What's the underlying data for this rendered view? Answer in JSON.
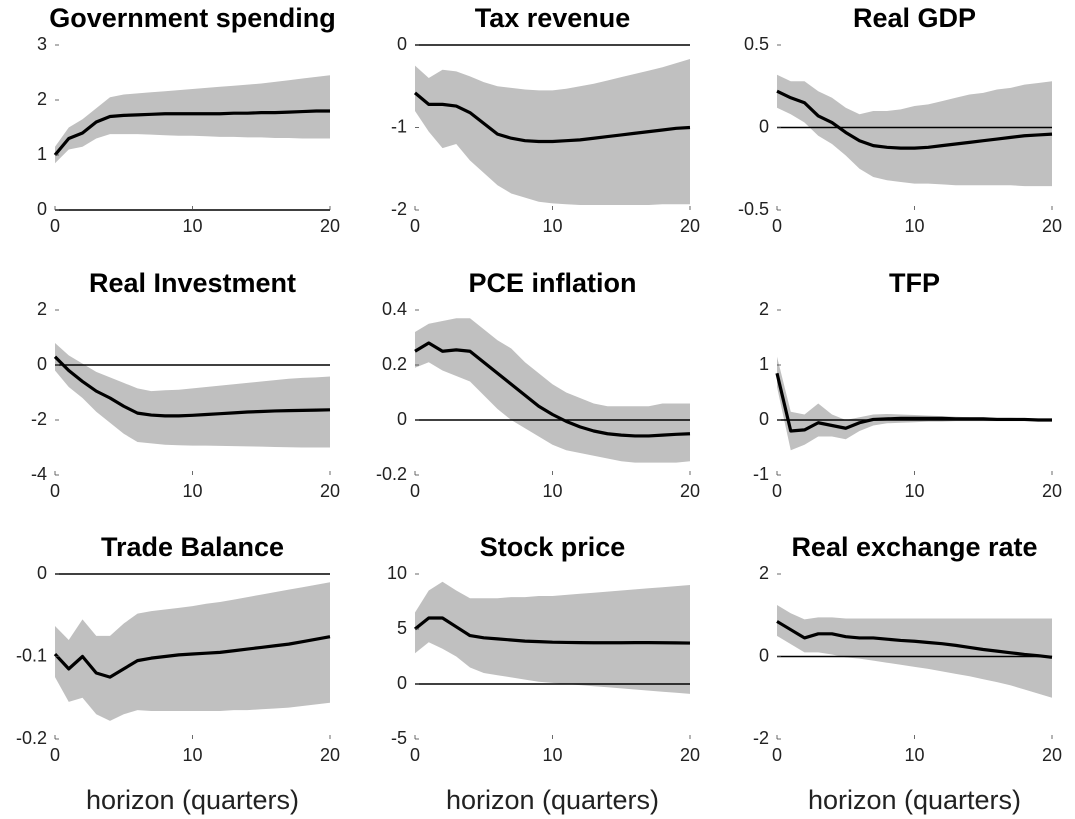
{
  "chart_data": [
    {
      "type": "line",
      "title": "Government spending",
      "x": [
        0,
        1,
        2,
        3,
        4,
        5,
        6,
        7,
        8,
        9,
        10,
        11,
        12,
        13,
        14,
        15,
        16,
        17,
        18,
        19,
        20
      ],
      "values": [
        1.0,
        1.3,
        1.4,
        1.6,
        1.7,
        1.72,
        1.73,
        1.74,
        1.75,
        1.75,
        1.75,
        1.75,
        1.75,
        1.76,
        1.76,
        1.77,
        1.77,
        1.78,
        1.79,
        1.8,
        1.8
      ],
      "lower": [
        0.85,
        1.1,
        1.15,
        1.3,
        1.38,
        1.38,
        1.38,
        1.37,
        1.36,
        1.35,
        1.35,
        1.34,
        1.33,
        1.33,
        1.32,
        1.32,
        1.31,
        1.31,
        1.3,
        1.3,
        1.3
      ],
      "upper": [
        1.15,
        1.5,
        1.65,
        1.85,
        2.05,
        2.1,
        2.12,
        2.14,
        2.16,
        2.18,
        2.2,
        2.22,
        2.24,
        2.26,
        2.28,
        2.3,
        2.33,
        2.36,
        2.39,
        2.42,
        2.45
      ],
      "color": "#000000",
      "band_color": "#c0c0c0",
      "xlim": [
        0,
        20
      ],
      "xticks": [
        0,
        10,
        20
      ],
      "ylim": [
        0,
        3
      ],
      "yticks": [
        0,
        1,
        2,
        3
      ]
    },
    {
      "type": "line",
      "title": "Tax revenue",
      "x": [
        0,
        1,
        2,
        3,
        4,
        5,
        6,
        7,
        8,
        9,
        10,
        11,
        12,
        13,
        14,
        15,
        16,
        17,
        18,
        19,
        20
      ],
      "values": [
        -0.58,
        -0.72,
        -0.72,
        -0.74,
        -0.82,
        -0.95,
        -1.08,
        -1.13,
        -1.16,
        -1.17,
        -1.17,
        -1.16,
        -1.15,
        -1.13,
        -1.11,
        -1.09,
        -1.07,
        -1.05,
        -1.03,
        -1.01,
        -1.0
      ],
      "lower": [
        -0.8,
        -1.05,
        -1.25,
        -1.2,
        -1.4,
        -1.55,
        -1.7,
        -1.8,
        -1.85,
        -1.9,
        -1.92,
        -1.93,
        -1.94,
        -1.94,
        -1.94,
        -1.94,
        -1.94,
        -1.94,
        -1.93,
        -1.93,
        -1.93
      ],
      "upper": [
        -0.25,
        -0.4,
        -0.3,
        -0.32,
        -0.38,
        -0.45,
        -0.5,
        -0.52,
        -0.54,
        -0.55,
        -0.55,
        -0.53,
        -0.5,
        -0.47,
        -0.43,
        -0.39,
        -0.35,
        -0.31,
        -0.27,
        -0.22,
        -0.17
      ],
      "color": "#000000",
      "band_color": "#c0c0c0",
      "xlim": [
        0,
        20
      ],
      "xticks": [
        0,
        10,
        20
      ],
      "ylim": [
        -2,
        0
      ],
      "yticks": [
        -2,
        -1,
        0
      ]
    },
    {
      "type": "line",
      "title": "Real GDP",
      "x": [
        0,
        1,
        2,
        3,
        4,
        5,
        6,
        7,
        8,
        9,
        10,
        11,
        12,
        13,
        14,
        15,
        16,
        17,
        18,
        19,
        20
      ],
      "values": [
        0.22,
        0.18,
        0.15,
        0.07,
        0.03,
        -0.03,
        -0.08,
        -0.11,
        -0.12,
        -0.125,
        -0.125,
        -0.12,
        -0.11,
        -0.1,
        -0.09,
        -0.08,
        -0.07,
        -0.06,
        -0.05,
        -0.045,
        -0.04
      ],
      "lower": [
        0.12,
        0.08,
        0.03,
        -0.05,
        -0.1,
        -0.17,
        -0.25,
        -0.3,
        -0.32,
        -0.33,
        -0.34,
        -0.34,
        -0.345,
        -0.35,
        -0.35,
        -0.35,
        -0.35,
        -0.35,
        -0.355,
        -0.355,
        -0.355
      ],
      "upper": [
        0.32,
        0.28,
        0.28,
        0.22,
        0.18,
        0.12,
        0.08,
        0.1,
        0.1,
        0.11,
        0.13,
        0.14,
        0.16,
        0.18,
        0.2,
        0.21,
        0.23,
        0.24,
        0.26,
        0.27,
        0.28
      ],
      "color": "#000000",
      "band_color": "#c0c0c0",
      "xlim": [
        0,
        20
      ],
      "xticks": [
        0,
        10,
        20
      ],
      "ylim": [
        -0.5,
        0.5
      ],
      "yticks": [
        -0.5,
        0,
        0.5
      ]
    },
    {
      "type": "line",
      "title": "Real Investment",
      "x": [
        0,
        1,
        2,
        3,
        4,
        5,
        6,
        7,
        8,
        9,
        10,
        11,
        12,
        13,
        14,
        15,
        16,
        17,
        18,
        19,
        20
      ],
      "values": [
        0.3,
        -0.2,
        -0.6,
        -0.95,
        -1.2,
        -1.5,
        -1.75,
        -1.82,
        -1.85,
        -1.85,
        -1.83,
        -1.8,
        -1.77,
        -1.74,
        -1.71,
        -1.69,
        -1.67,
        -1.66,
        -1.65,
        -1.64,
        -1.63
      ],
      "lower": [
        -0.2,
        -0.8,
        -1.2,
        -1.7,
        -2.1,
        -2.5,
        -2.8,
        -2.85,
        -2.9,
        -2.92,
        -2.93,
        -2.93,
        -2.94,
        -2.95,
        -2.96,
        -2.97,
        -2.98,
        -2.99,
        -3.0,
        -3.0,
        -3.0
      ],
      "upper": [
        0.8,
        0.35,
        0.05,
        -0.25,
        -0.45,
        -0.65,
        -0.85,
        -0.95,
        -0.92,
        -0.9,
        -0.85,
        -0.8,
        -0.75,
        -0.7,
        -0.65,
        -0.6,
        -0.55,
        -0.5,
        -0.47,
        -0.45,
        -0.42
      ],
      "color": "#000000",
      "band_color": "#c0c0c0",
      "xlim": [
        0,
        20
      ],
      "xticks": [
        0,
        10,
        20
      ],
      "ylim": [
        -4,
        2
      ],
      "yticks": [
        -4,
        -2,
        0,
        2
      ]
    },
    {
      "type": "line",
      "title": "PCE inflation",
      "x": [
        0,
        1,
        2,
        3,
        4,
        5,
        6,
        7,
        8,
        9,
        10,
        11,
        12,
        13,
        14,
        15,
        16,
        17,
        18,
        19,
        20
      ],
      "values": [
        0.25,
        0.28,
        0.25,
        0.255,
        0.25,
        0.21,
        0.17,
        0.13,
        0.09,
        0.05,
        0.02,
        -0.005,
        -0.025,
        -0.04,
        -0.05,
        -0.055,
        -0.058,
        -0.058,
        -0.055,
        -0.052,
        -0.05
      ],
      "lower": [
        0.19,
        0.21,
        0.18,
        0.16,
        0.14,
        0.09,
        0.04,
        0.0,
        -0.03,
        -0.06,
        -0.09,
        -0.11,
        -0.12,
        -0.13,
        -0.14,
        -0.15,
        -0.155,
        -0.155,
        -0.155,
        -0.155,
        -0.15
      ],
      "upper": [
        0.32,
        0.35,
        0.36,
        0.37,
        0.37,
        0.33,
        0.29,
        0.26,
        0.21,
        0.17,
        0.13,
        0.1,
        0.08,
        0.06,
        0.05,
        0.05,
        0.05,
        0.05,
        0.06,
        0.06,
        0.06
      ],
      "color": "#000000",
      "band_color": "#c0c0c0",
      "xlim": [
        0,
        20
      ],
      "xticks": [
        0,
        10,
        20
      ],
      "ylim": [
        -0.2,
        0.4
      ],
      "yticks": [
        -0.2,
        0,
        0.2,
        0.4
      ]
    },
    {
      "type": "line",
      "title": "TFP",
      "x": [
        0,
        1,
        2,
        3,
        4,
        5,
        6,
        7,
        8,
        9,
        10,
        11,
        12,
        13,
        14,
        15,
        16,
        17,
        18,
        19,
        20
      ],
      "values": [
        0.85,
        -0.2,
        -0.18,
        -0.05,
        -0.1,
        -0.15,
        -0.05,
        0.01,
        0.02,
        0.03,
        0.03,
        0.03,
        0.03,
        0.02,
        0.02,
        0.02,
        0.01,
        0.01,
        0.01,
        0.0,
        0.0
      ],
      "lower": [
        0.6,
        -0.55,
        -0.45,
        -0.3,
        -0.3,
        -0.35,
        -0.2,
        -0.1,
        -0.06,
        -0.05,
        -0.04,
        -0.03,
        -0.03,
        -0.02,
        -0.02,
        -0.02,
        -0.02,
        -0.02,
        -0.02,
        -0.02,
        -0.02
      ],
      "upper": [
        1.15,
        0.15,
        0.1,
        0.3,
        0.1,
        0.0,
        0.05,
        0.1,
        0.11,
        0.1,
        0.09,
        0.08,
        0.07,
        0.06,
        0.05,
        0.05,
        0.04,
        0.04,
        0.03,
        0.03,
        0.03
      ],
      "color": "#000000",
      "band_color": "#c0c0c0",
      "xlim": [
        0,
        20
      ],
      "xticks": [
        0,
        10,
        20
      ],
      "ylim": [
        -1,
        2
      ],
      "yticks": [
        -1,
        0,
        1,
        2
      ]
    },
    {
      "type": "line",
      "title": "Trade Balance",
      "xlabel": "horizon (quarters)",
      "x": [
        0,
        1,
        2,
        3,
        4,
        5,
        6,
        7,
        8,
        9,
        10,
        11,
        12,
        13,
        14,
        15,
        16,
        17,
        18,
        19,
        20
      ],
      "values": [
        -0.097,
        -0.115,
        -0.1,
        -0.12,
        -0.125,
        -0.115,
        -0.105,
        -0.102,
        -0.1,
        -0.098,
        -0.097,
        -0.096,
        -0.095,
        -0.093,
        -0.091,
        -0.089,
        -0.087,
        -0.085,
        -0.082,
        -0.079,
        -0.076
      ],
      "lower": [
        -0.125,
        -0.155,
        -0.15,
        -0.17,
        -0.178,
        -0.17,
        -0.165,
        -0.166,
        -0.166,
        -0.166,
        -0.166,
        -0.166,
        -0.166,
        -0.165,
        -0.165,
        -0.164,
        -0.163,
        -0.162,
        -0.16,
        -0.158,
        -0.156
      ],
      "upper": [
        -0.063,
        -0.08,
        -0.055,
        -0.075,
        -0.075,
        -0.06,
        -0.048,
        -0.045,
        -0.043,
        -0.041,
        -0.039,
        -0.036,
        -0.034,
        -0.031,
        -0.028,
        -0.025,
        -0.022,
        -0.019,
        -0.016,
        -0.013,
        -0.01
      ],
      "color": "#000000",
      "band_color": "#c0c0c0",
      "xlim": [
        0,
        20
      ],
      "xticks": [
        0,
        10,
        20
      ],
      "ylim": [
        -0.2,
        0
      ],
      "yticks": [
        -0.2,
        -0.1,
        0
      ]
    },
    {
      "type": "line",
      "title": "Stock price",
      "xlabel": "horizon (quarters)",
      "x": [
        0,
        1,
        2,
        3,
        4,
        5,
        6,
        7,
        8,
        9,
        10,
        11,
        12,
        13,
        14,
        15,
        16,
        17,
        18,
        19,
        20
      ],
      "values": [
        5,
        6,
        6,
        5.2,
        4.4,
        4.2,
        4.1,
        4.0,
        3.9,
        3.85,
        3.8,
        3.78,
        3.76,
        3.75,
        3.75,
        3.75,
        3.76,
        3.76,
        3.75,
        3.74,
        3.72
      ],
      "lower": [
        2.8,
        3.8,
        3.2,
        2.5,
        1.5,
        1.0,
        0.8,
        0.6,
        0.4,
        0.2,
        0.1,
        0.0,
        -0.1,
        -0.2,
        -0.3,
        -0.4,
        -0.5,
        -0.6,
        -0.7,
        -0.8,
        -0.9
      ],
      "upper": [
        6.5,
        8.5,
        9.3,
        8.5,
        7.8,
        7.8,
        7.8,
        7.9,
        7.9,
        8.0,
        8.0,
        8.1,
        8.2,
        8.3,
        8.4,
        8.5,
        8.6,
        8.7,
        8.8,
        8.9,
        9.0
      ],
      "color": "#000000",
      "band_color": "#c0c0c0",
      "xlim": [
        0,
        20
      ],
      "xticks": [
        0,
        10,
        20
      ],
      "ylim": [
        -5,
        10
      ],
      "yticks": [
        -5,
        0,
        5,
        10
      ]
    },
    {
      "type": "line",
      "title": "Real exchange rate",
      "xlabel": "horizon (quarters)",
      "x": [
        0,
        1,
        2,
        3,
        4,
        5,
        6,
        7,
        8,
        9,
        10,
        11,
        12,
        13,
        14,
        15,
        16,
        17,
        18,
        19,
        20
      ],
      "values": [
        0.85,
        0.65,
        0.45,
        0.55,
        0.55,
        0.48,
        0.45,
        0.45,
        0.42,
        0.39,
        0.37,
        0.34,
        0.31,
        0.27,
        0.22,
        0.17,
        0.13,
        0.09,
        0.05,
        0.02,
        -0.02
      ],
      "lower": [
        0.5,
        0.3,
        0.1,
        0.1,
        0.05,
        -0.02,
        -0.05,
        -0.1,
        -0.15,
        -0.2,
        -0.25,
        -0.3,
        -0.36,
        -0.42,
        -0.48,
        -0.55,
        -0.62,
        -0.7,
        -0.8,
        -0.9,
        -1.0
      ],
      "upper": [
        1.25,
        1.05,
        0.9,
        0.95,
        0.95,
        0.92,
        0.92,
        0.92,
        0.92,
        0.92,
        0.92,
        0.92,
        0.92,
        0.92,
        0.92,
        0.92,
        0.92,
        0.92,
        0.92,
        0.92,
        0.92
      ],
      "color": "#000000",
      "band_color": "#c0c0c0",
      "xlim": [
        0,
        20
      ],
      "xticks": [
        0,
        10,
        20
      ],
      "ylim": [
        -2,
        2
      ],
      "yticks": [
        -2,
        0,
        2
      ]
    }
  ]
}
